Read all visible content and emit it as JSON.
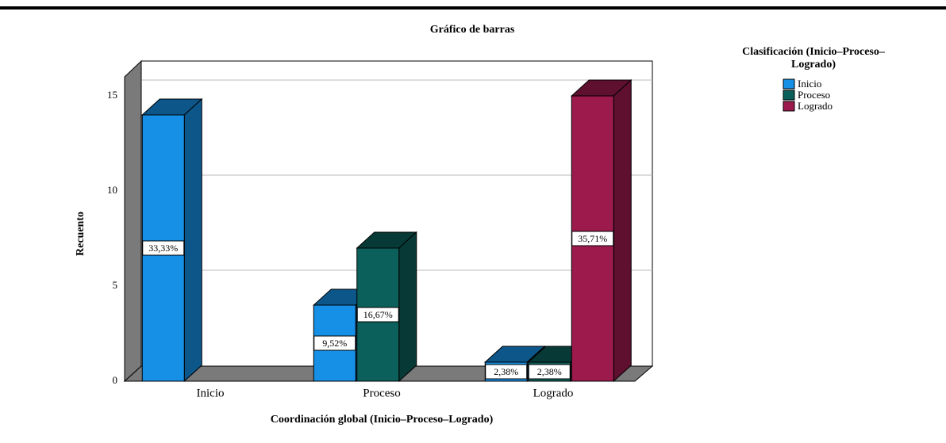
{
  "chart_data": {
    "type": "bar3d",
    "title": "Gráfico de barras",
    "x_label": "Coordinación global (Inicio–Proceso–Logrado)",
    "y_label": "Recuento",
    "legend_title": "Clasificación (Inicio–Proceso–Logrado)",
    "categories": [
      "Inicio",
      "Proceso",
      "Logrado"
    ],
    "series": [
      {
        "name": "Inicio",
        "color": "#1590e6",
        "values": [
          14,
          4,
          1
        ],
        "percent_labels": [
          "33,33%",
          "9,52%",
          "2,38%"
        ]
      },
      {
        "name": "Proceso",
        "color": "#0b605b",
        "values": [
          null,
          7,
          1
        ],
        "percent_labels": [
          null,
          "16,67%",
          "2,38%"
        ]
      },
      {
        "name": "Logrado",
        "color": "#9c1a4c",
        "values": [
          null,
          null,
          15
        ],
        "percent_labels": [
          null,
          null,
          "35,71%"
        ]
      }
    ],
    "ylim": [
      0,
      16
    ],
    "yticks": [
      0,
      5,
      10,
      15
    ],
    "grid": true,
    "legend": "right"
  }
}
